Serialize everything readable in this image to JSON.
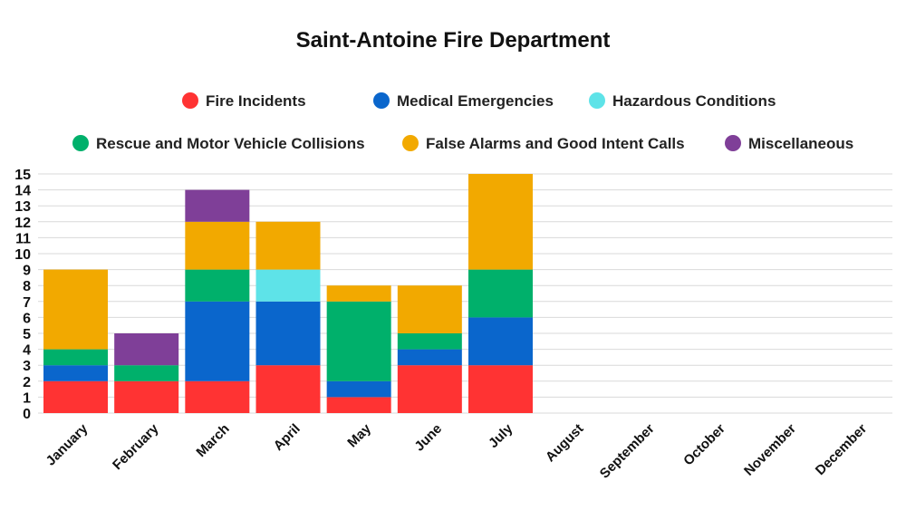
{
  "chart_data": {
    "type": "bar",
    "stacked": true,
    "title": "Saint-Antoine Fire Department",
    "xlabel": "",
    "ylabel": "",
    "ylim": [
      0,
      15
    ],
    "yticks": [
      0,
      1,
      2,
      3,
      4,
      5,
      6,
      7,
      8,
      9,
      10,
      11,
      12,
      13,
      14,
      15
    ],
    "grid": true,
    "legend_position": "top",
    "categories": [
      "January",
      "February",
      "March",
      "April",
      "May",
      "June",
      "July",
      "August",
      "September",
      "October",
      "November",
      "December"
    ],
    "series": [
      {
        "name": "Fire Incidents",
        "color": "#ff3333",
        "values": [
          2,
          2,
          2,
          3,
          1,
          3,
          3,
          0,
          0,
          0,
          0,
          0
        ]
      },
      {
        "name": "Medical Emergencies",
        "color": "#0a66cc",
        "values": [
          1,
          0,
          5,
          4,
          1,
          1,
          3,
          0,
          0,
          0,
          0,
          0
        ]
      },
      {
        "name": "Hazardous Conditions",
        "color": "#5ee3e8",
        "values": [
          0,
          0,
          0,
          2,
          0,
          0,
          0,
          0,
          0,
          0,
          0,
          0
        ]
      },
      {
        "name": "Rescue and Motor Vehicle Collisions",
        "color": "#00b06b",
        "values": [
          1,
          1,
          2,
          0,
          5,
          1,
          3,
          0,
          0,
          0,
          0,
          0
        ]
      },
      {
        "name": "False Alarms and Good Intent Calls",
        "color": "#f2a900",
        "values": [
          5,
          0,
          3,
          3,
          1,
          3,
          6,
          0,
          0,
          0,
          0,
          0
        ]
      },
      {
        "name": "Miscellaneous",
        "color": "#7f3f98",
        "values": [
          0,
          2,
          2,
          0,
          0,
          0,
          0,
          0,
          0,
          0,
          0,
          0
        ]
      }
    ]
  }
}
